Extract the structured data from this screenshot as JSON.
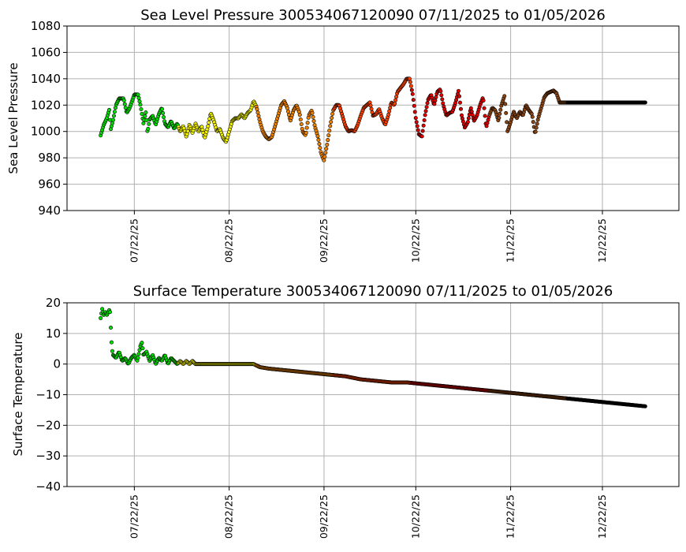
{
  "colors": {
    "segments": [
      "#00e000",
      "#f5f500",
      "#f08000",
      "#ff4000",
      "#e00000",
      "#8b4513",
      "#000000"
    ],
    "outline": "#000000",
    "grid": "#b0b0b0"
  },
  "chart_data": [
    {
      "type": "scatter",
      "title": "Sea Level Pressure 300534067120090  07/11/2025 to 01/05/2026",
      "ylabel": "Sea Level Pressure",
      "xlabel": "",
      "ylim": [
        940,
        1080
      ],
      "yticks": [
        940,
        960,
        980,
        1000,
        1020,
        1040,
        1060,
        1080
      ],
      "xlim": [
        "2025-06-30",
        "2026-01-16"
      ],
      "xticks": [
        "07/22/25",
        "08/22/25",
        "09/22/25",
        "10/22/25",
        "11/22/25",
        "12/22/25"
      ],
      "grid": true,
      "x_start": "2025-07-11",
      "x_end": "2026-01-05",
      "series_keyframes": [
        [
          0,
          997
        ],
        [
          1,
          1005
        ],
        [
          2,
          1010
        ],
        [
          3,
          1018
        ],
        [
          3.1,
          1000
        ],
        [
          4,
          1008
        ],
        [
          5,
          1020
        ],
        [
          6,
          1025
        ],
        [
          7.5,
          1025
        ],
        [
          8.5,
          1014
        ],
        [
          9.5,
          1018
        ],
        [
          11,
          1028
        ],
        [
          12.2,
          1028
        ],
        [
          13,
          1020
        ],
        [
          14,
          1006
        ],
        [
          14.8,
          1015
        ],
        [
          15.3,
          999
        ],
        [
          16,
          1009
        ],
        [
          17,
          1012
        ],
        [
          18,
          1005
        ],
        [
          19,
          1013
        ],
        [
          20,
          1018
        ],
        [
          21,
          1006
        ],
        [
          22,
          1003
        ],
        [
          23,
          1008
        ],
        [
          24,
          1002
        ],
        [
          25,
          1006
        ],
        [
          26,
          1000
        ],
        [
          27,
          1004
        ],
        [
          28,
          996
        ],
        [
          29,
          1005
        ],
        [
          30,
          999
        ],
        [
          31,
          1006
        ],
        [
          32,
          1000
        ],
        [
          33,
          1004
        ],
        [
          34,
          995
        ],
        [
          35,
          1003
        ],
        [
          36,
          1014
        ],
        [
          37,
          1008
        ],
        [
          38,
          1000
        ],
        [
          39,
          1002
        ],
        [
          40,
          995
        ],
        [
          41,
          992
        ],
        [
          42,
          1000
        ],
        [
          43,
          1008
        ],
        [
          44,
          1010
        ],
        [
          45,
          1010
        ],
        [
          46,
          1013
        ],
        [
          47,
          1010
        ],
        [
          48,
          1014
        ],
        [
          49,
          1016
        ],
        [
          50,
          1023
        ],
        [
          51,
          1018
        ],
        [
          52,
          1008
        ],
        [
          53,
          1000
        ],
        [
          54,
          996
        ],
        [
          55,
          994
        ],
        [
          56,
          996
        ],
        [
          57,
          1004
        ],
        [
          58,
          1012
        ],
        [
          59,
          1020
        ],
        [
          60,
          1023
        ],
        [
          61,
          1018
        ],
        [
          62,
          1008
        ],
        [
          63,
          1016
        ],
        [
          64,
          1020
        ],
        [
          65,
          1014
        ],
        [
          66,
          1000
        ],
        [
          67,
          997
        ],
        [
          68,
          1012
        ],
        [
          69,
          1016
        ],
        [
          70,
          1004
        ],
        [
          71,
          996
        ],
        [
          72,
          984
        ],
        [
          73,
          978
        ],
        [
          74,
          990
        ],
        [
          75,
          1004
        ],
        [
          76,
          1016
        ],
        [
          77,
          1020
        ],
        [
          78,
          1020
        ],
        [
          79,
          1012
        ],
        [
          80,
          1004
        ],
        [
          81,
          1000
        ],
        [
          82,
          1001
        ],
        [
          83,
          1000
        ],
        [
          84,
          1005
        ],
        [
          85,
          1012
        ],
        [
          86,
          1018
        ],
        [
          87,
          1020
        ],
        [
          88,
          1022
        ],
        [
          89,
          1012
        ],
        [
          90,
          1013
        ],
        [
          91,
          1017
        ],
        [
          92,
          1010
        ],
        [
          93,
          1005
        ],
        [
          94,
          1012
        ],
        [
          95,
          1022
        ],
        [
          96,
          1020
        ],
        [
          97,
          1030
        ],
        [
          98,
          1033
        ],
        [
          99,
          1036
        ],
        [
          100,
          1040
        ],
        [
          101,
          1040
        ],
        [
          102,
          1028
        ],
        [
          103,
          1010
        ],
        [
          104,
          998
        ],
        [
          105,
          996
        ],
        [
          106,
          1012
        ],
        [
          107,
          1024
        ],
        [
          108,
          1028
        ],
        [
          109,
          1020
        ],
        [
          110,
          1030
        ],
        [
          111,
          1032
        ],
        [
          112,
          1020
        ],
        [
          113,
          1012
        ],
        [
          114,
          1014
        ],
        [
          115,
          1015
        ],
        [
          116,
          1022
        ],
        [
          117,
          1031
        ],
        [
          118,
          1012
        ],
        [
          119,
          1003
        ],
        [
          120,
          1007
        ],
        [
          121,
          1018
        ],
        [
          122,
          1008
        ],
        [
          123,
          1012
        ],
        [
          124,
          1020
        ],
        [
          125,
          1026
        ],
        [
          126,
          1003
        ],
        [
          127,
          1012
        ],
        [
          128,
          1018
        ],
        [
          129,
          1016
        ],
        [
          130,
          1008
        ],
        [
          131,
          1020
        ],
        [
          132,
          1027
        ],
        [
          133,
          1000
        ],
        [
          134,
          1007
        ],
        [
          135,
          1015
        ],
        [
          136,
          1010
        ],
        [
          137,
          1015
        ],
        [
          138,
          1012
        ],
        [
          139,
          1020
        ],
        [
          140,
          1016
        ],
        [
          141,
          1013
        ],
        [
          142,
          998
        ],
        [
          143,
          1010
        ],
        [
          144,
          1018
        ],
        [
          145,
          1026
        ],
        [
          146,
          1029
        ],
        [
          147,
          1030
        ],
        [
          148,
          1031
        ],
        [
          149,
          1029
        ],
        [
          150,
          1022
        ]
      ]
    },
    {
      "type": "scatter",
      "title": "Surface Temperature 300534067120090  07/11/2025 to 01/05/2026",
      "ylabel": "Surface Temperature",
      "xlabel": "",
      "ylim": [
        -40,
        20
      ],
      "yticks": [
        -40,
        -30,
        -20,
        -10,
        0,
        10,
        20
      ],
      "xlim": [
        "2025-06-30",
        "2026-01-16"
      ],
      "xticks": [
        "07/22/25",
        "08/22/25",
        "09/22/25",
        "10/22/25",
        "11/22/25",
        "12/22/25"
      ],
      "grid": true,
      "x_start": "2025-07-11",
      "x_end": "2026-01-05",
      "series_keyframes": [
        [
          0,
          15
        ],
        [
          0.5,
          18
        ],
        [
          1,
          16
        ],
        [
          1.5,
          17
        ],
        [
          2,
          16
        ],
        [
          3,
          18
        ],
        [
          3.3,
          12
        ],
        [
          3.5,
          8
        ],
        [
          3.7,
          5
        ],
        [
          4,
          3
        ],
        [
          5,
          2
        ],
        [
          6,
          4
        ],
        [
          7,
          1
        ],
        [
          8,
          2
        ],
        [
          9,
          0
        ],
        [
          10,
          2
        ],
        [
          11,
          3
        ],
        [
          12,
          1
        ],
        [
          13,
          6
        ],
        [
          13.5,
          7
        ],
        [
          14,
          3
        ],
        [
          15,
          4
        ],
        [
          16,
          1
        ],
        [
          17,
          3
        ],
        [
          18,
          0
        ],
        [
          19,
          2
        ],
        [
          20,
          1
        ],
        [
          21,
          3
        ],
        [
          22,
          0
        ],
        [
          23,
          2
        ],
        [
          24,
          1
        ],
        [
          25,
          0
        ],
        [
          26,
          1
        ],
        [
          27,
          0
        ],
        [
          28,
          1
        ],
        [
          29,
          0
        ],
        [
          30,
          1
        ],
        [
          31,
          0
        ],
        [
          32,
          0
        ],
        [
          40,
          0
        ],
        [
          50,
          0
        ],
        [
          52,
          -1
        ],
        [
          55,
          -1.5
        ],
        [
          60,
          -2
        ],
        [
          65,
          -2.5
        ],
        [
          70,
          -3
        ],
        [
          75,
          -3.5
        ],
        [
          80,
          -4
        ],
        [
          85,
          -5
        ],
        [
          90,
          -5.5
        ],
        [
          95,
          -6
        ],
        [
          100,
          -6
        ],
        [
          105,
          -6.5
        ],
        [
          110,
          -7
        ],
        [
          115,
          -7.5
        ],
        [
          120,
          -8
        ],
        [
          125,
          -8.5
        ],
        [
          130,
          -9
        ],
        [
          135,
          -9.5
        ],
        [
          140,
          -10
        ],
        [
          145,
          -10.5
        ],
        [
          150,
          -11
        ],
        [
          155,
          -11.5
        ],
        [
          160,
          -12
        ],
        [
          165,
          -12.5
        ],
        [
          170,
          -13
        ],
        [
          175,
          -13.5
        ],
        [
          180,
          -14
        ],
        [
          182,
          -14.5
        ],
        [
          184,
          -15
        ]
      ]
    }
  ]
}
